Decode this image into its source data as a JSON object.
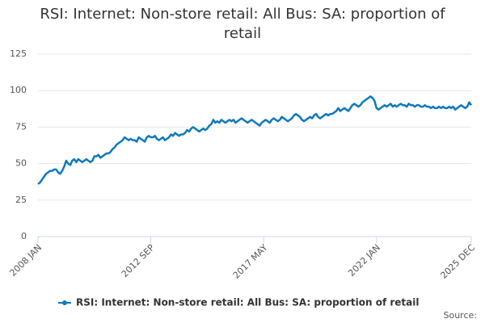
{
  "chart_data": {
    "type": "line",
    "title": "RSI: Internet: Non-store retail: All Bus: SA: proportion of retail",
    "source_label": "Source:",
    "categories": [
      "2008 JAN",
      null,
      null,
      null,
      null,
      null,
      null,
      null,
      null,
      null,
      null,
      null,
      null,
      null,
      null,
      null,
      null,
      null,
      null,
      null,
      null,
      null,
      null,
      null,
      null,
      null,
      null,
      null,
      null,
      null,
      null,
      null,
      null,
      null,
      null,
      null,
      null,
      null,
      null,
      null,
      null,
      null,
      null,
      null,
      null,
      null,
      null,
      null,
      null,
      null,
      null,
      null,
      null,
      null,
      null,
      null,
      "2012 SEP",
      null,
      null,
      null,
      null,
      null,
      null,
      null,
      null,
      null,
      null,
      null,
      null,
      null,
      null,
      null,
      null,
      null,
      null,
      null,
      null,
      null,
      null,
      null,
      null,
      null,
      null,
      null,
      null,
      null,
      null,
      null,
      null,
      null,
      null,
      null,
      null,
      null,
      null,
      null,
      null,
      null,
      null,
      null,
      null,
      null,
      null,
      null,
      null,
      null,
      null,
      null,
      null,
      null,
      null,
      null,
      "2017 MAY",
      null,
      null,
      null,
      null,
      null,
      null,
      null,
      null,
      null,
      null,
      null,
      null,
      null,
      null,
      null,
      null,
      null,
      null,
      null,
      null,
      null,
      null,
      null,
      null,
      null,
      null,
      null,
      null,
      null,
      null,
      null,
      null,
      null,
      null,
      null,
      null,
      null,
      null,
      null,
      null,
      null,
      null,
      null,
      null,
      null,
      null,
      null,
      null,
      null,
      null,
      null,
      null,
      null,
      null,
      null,
      "2022 JAN",
      null,
      null,
      null,
      null,
      null,
      null,
      null,
      null,
      null,
      null,
      null,
      null,
      null,
      null,
      null,
      null,
      null,
      null,
      null,
      null,
      null,
      null,
      null,
      null,
      null,
      null,
      null,
      null,
      null,
      null,
      null,
      null,
      null,
      null,
      null,
      null,
      null,
      null,
      null,
      null,
      null,
      null,
      null,
      null,
      null,
      null,
      "2025 DEC"
    ],
    "series": [
      {
        "name": "RSI: Internet: Non-store retail: All Bus: SA: proportion of retail",
        "color": "#0f79b9",
        "values": [
          36,
          37,
          39,
          41,
          43,
          44,
          45,
          45,
          46,
          46,
          44,
          43,
          45,
          48,
          52,
          50,
          49,
          52,
          53,
          51,
          53,
          52,
          51,
          52,
          53,
          52,
          51,
          52,
          55,
          55,
          56,
          54,
          55,
          56,
          57,
          57,
          58,
          60,
          61,
          63,
          64,
          65,
          66,
          68,
          67,
          66,
          67,
          66,
          66,
          65,
          68,
          67,
          66,
          65,
          68,
          69,
          68,
          68,
          69,
          67,
          66,
          67,
          68,
          66,
          67,
          68,
          70,
          69,
          71,
          70,
          69,
          70,
          70,
          71,
          73,
          72,
          74,
          75,
          74,
          73,
          72,
          73,
          74,
          73,
          74,
          76,
          77,
          80,
          78,
          79,
          78,
          80,
          79,
          78,
          79,
          80,
          79,
          80,
          78,
          79,
          80,
          81,
          80,
          79,
          78,
          79,
          80,
          79,
          78,
          77,
          76,
          78,
          79,
          80,
          79,
          78,
          80,
          81,
          80,
          79,
          80,
          82,
          81,
          80,
          79,
          80,
          81,
          83,
          84,
          83,
          82,
          80,
          79,
          80,
          81,
          82,
          81,
          83,
          84,
          82,
          81,
          82,
          83,
          84,
          83,
          84,
          84,
          85,
          86,
          88,
          86,
          87,
          88,
          87,
          86,
          88,
          90,
          91,
          90,
          89,
          90,
          92,
          93,
          94,
          95,
          96,
          95,
          93,
          88,
          87,
          88,
          89,
          90,
          89,
          90,
          91,
          89,
          90,
          89,
          90,
          91,
          90,
          90,
          89,
          91,
          90,
          90,
          89,
          90,
          90,
          89,
          89,
          90,
          89,
          89,
          88,
          89,
          88,
          88,
          89,
          88,
          89,
          88,
          88,
          89,
          88,
          89,
          87,
          88,
          89,
          90,
          89,
          88,
          89,
          92,
          90
        ]
      }
    ],
    "ylim": [
      0,
      125
    ],
    "yticks": [
      0,
      25,
      50,
      75,
      100,
      125
    ],
    "grid": true
  }
}
